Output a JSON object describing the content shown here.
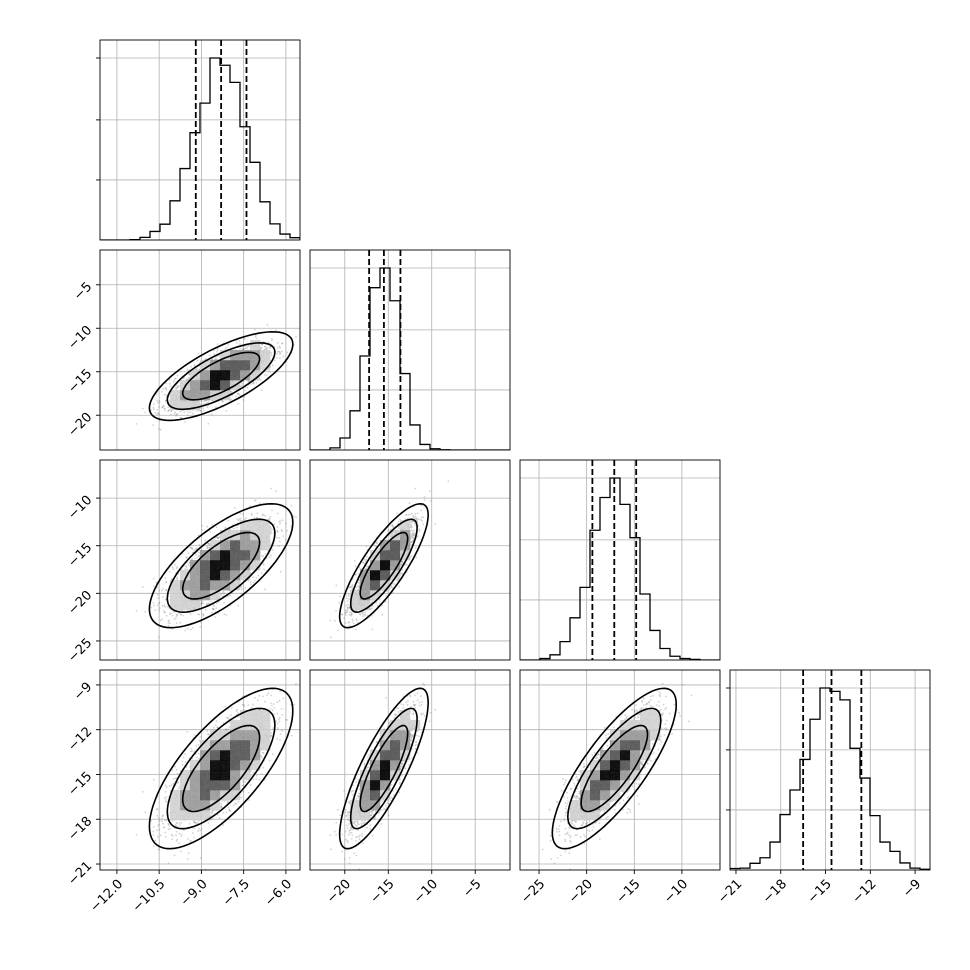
{
  "chart_data": {
    "type": "corner",
    "parameters": [
      {
        "index": 0,
        "median": -8.3,
        "q16": -9.2,
        "q84": -7.4,
        "sigma": 0.9,
        "range": [
          -12.6,
          -5.5
        ],
        "ticks": [
          -12.0,
          -10.5,
          -9.0,
          -7.5,
          -6.0
        ],
        "tick_labels": [
          "−12.0",
          "−10.5",
          "−9.0",
          "−7.5",
          "−6.0"
        ]
      },
      {
        "index": 1,
        "median": -15.5,
        "q16": -17.2,
        "q84": -13.6,
        "sigma": 1.8,
        "range": [
          -24,
          -1
        ],
        "ticks": [
          -20,
          -15,
          -10,
          -5
        ],
        "tick_labels": [
          "−20",
          "−15",
          "−10",
          "−5"
        ]
      },
      {
        "index": 2,
        "median": -17.1,
        "q16": -19.4,
        "q84": -14.8,
        "sigma": 2.3,
        "range": [
          -27,
          -6
        ],
        "ticks": [
          -25,
          -20,
          -15,
          -10
        ],
        "tick_labels": [
          "−25",
          "−20",
          "−15",
          "−10"
        ]
      },
      {
        "index": 3,
        "median": -14.6,
        "q16": -16.5,
        "q84": -12.6,
        "sigma": 1.9,
        "range": [
          -21.4,
          -8.0
        ],
        "ticks": [
          -21,
          -18,
          -15,
          -12,
          -9
        ],
        "tick_labels": [
          "−21",
          "−18",
          "−15",
          "−12",
          "−9"
        ]
      }
    ],
    "correlations": [
      [
        1.0,
        0.72,
        0.7,
        0.72
      ],
      [
        0.72,
        1.0,
        0.82,
        0.82
      ],
      [
        0.7,
        0.82,
        1.0,
        0.8
      ],
      [
        0.72,
        0.82,
        0.8,
        1.0
      ]
    ],
    "histogram": {
      "bins": 20,
      "style": "step",
      "quantile_lines": "dashed"
    },
    "grid": true,
    "colors": {
      "line": "#000000",
      "points": "#808080",
      "grid": "#b0b0b0"
    }
  }
}
